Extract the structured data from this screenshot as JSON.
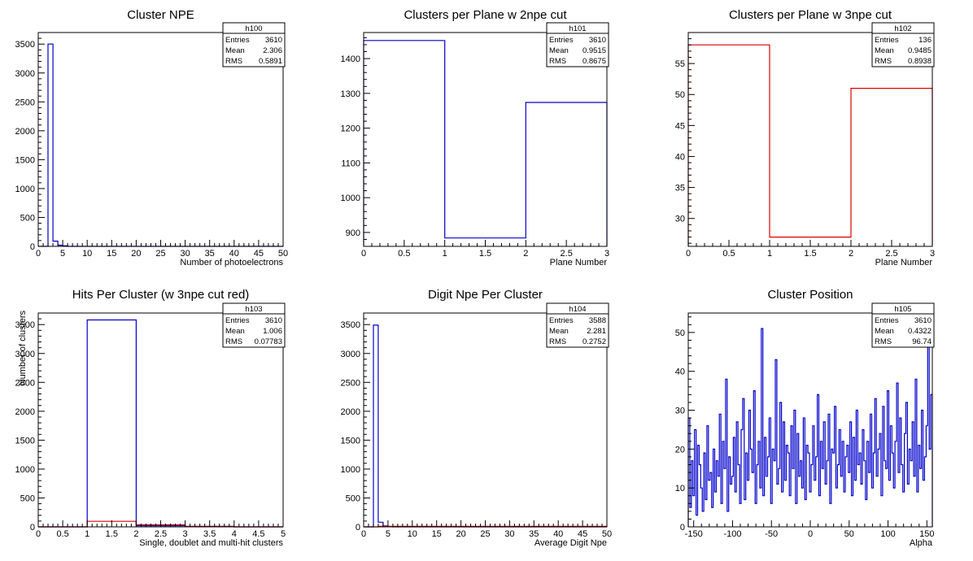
{
  "colors": {
    "blue": "#0000cc",
    "red": "#dd0000",
    "axis": "#000000"
  },
  "chart_data": [
    {
      "type": "bar",
      "title": "Cluster NPE",
      "xlabel": "Number of photoelectrons",
      "ylabel": "",
      "xlim": [
        0,
        50
      ],
      "ylim": [
        0,
        3700
      ],
      "xticks": [
        0,
        5,
        10,
        15,
        20,
        25,
        30,
        35,
        40,
        45,
        50
      ],
      "yticks": [
        0,
        500,
        1000,
        1500,
        2000,
        2500,
        3000,
        3500
      ],
      "stats": {
        "name": "h100",
        "entries": "3610",
        "mean": "2.306",
        "rms": "0.5891"
      },
      "series": [
        {
          "color": "#0000cc",
          "bin_edges": [
            0,
            2,
            3,
            4,
            5,
            6,
            50
          ],
          "values": [
            0,
            3500,
            90,
            20,
            8,
            0
          ]
        }
      ]
    },
    {
      "type": "bar",
      "title": "Clusters per Plane w 2npe cut",
      "xlabel": "Plane Number",
      "ylabel": "",
      "xlim": [
        0,
        3
      ],
      "ylim": [
        860,
        1475
      ],
      "xticks": [
        0,
        0.5,
        1,
        1.5,
        2,
        2.5,
        3
      ],
      "yticks": [
        900,
        1000,
        1100,
        1200,
        1300,
        1400
      ],
      "stats": {
        "name": "h101",
        "entries": "3610",
        "mean": "0.9515",
        "rms": "0.8675"
      },
      "series": [
        {
          "color": "#0000cc",
          "bin_edges": [
            0,
            1,
            2,
            3
          ],
          "values": [
            1452,
            884,
            1274
          ]
        }
      ]
    },
    {
      "type": "bar",
      "title": "Clusters per Plane w 3npe cut",
      "xlabel": "Plane Number",
      "ylabel": "",
      "xlim": [
        0,
        3
      ],
      "ylim": [
        25.5,
        60
      ],
      "xticks": [
        0,
        0.5,
        1,
        1.5,
        2,
        2.5,
        3
      ],
      "yticks": [
        30,
        35,
        40,
        45,
        50,
        55
      ],
      "stats": {
        "name": "h102",
        "entries": "136",
        "mean": "0.9485",
        "rms": "0.8938"
      },
      "series": [
        {
          "color": "#dd0000",
          "bin_edges": [
            0,
            1,
            2,
            3
          ],
          "values": [
            58,
            27,
            51
          ]
        }
      ]
    },
    {
      "type": "bar",
      "title": "Hits Per Cluster (w 3npe cut red)",
      "xlabel": "Single, doublet and multi-hit clusters",
      "ylabel": "Number of clusters",
      "xlim": [
        0,
        5
      ],
      "ylim": [
        0,
        3700
      ],
      "xticks": [
        0,
        0.5,
        1,
        1.5,
        2,
        2.5,
        3,
        3.5,
        4,
        4.5,
        5
      ],
      "yticks": [
        0,
        500,
        1000,
        1500,
        2000,
        2500,
        3000,
        3500
      ],
      "stats": {
        "name": "h103",
        "entries": "3610",
        "mean": "1.006",
        "rms": "0.07783"
      },
      "series": [
        {
          "color": "#0000cc",
          "bin_edges": [
            0,
            1,
            2,
            3,
            4,
            5
          ],
          "values": [
            0,
            3580,
            20,
            8,
            0
          ]
        },
        {
          "color": "#dd0000",
          "bin_edges": [
            0,
            1,
            2,
            3,
            4,
            5
          ],
          "values": [
            0,
            95,
            35,
            5,
            0
          ]
        }
      ]
    },
    {
      "type": "bar",
      "title": "Digit Npe Per Cluster",
      "xlabel": "Average Digit Npe",
      "ylabel": "",
      "xlim": [
        0,
        50
      ],
      "ylim": [
        0,
        3700
      ],
      "xticks": [
        0,
        5,
        10,
        15,
        20,
        25,
        30,
        35,
        40,
        45,
        50
      ],
      "yticks": [
        0,
        500,
        1000,
        1500,
        2000,
        2500,
        3000,
        3500
      ],
      "stats": {
        "name": "h104",
        "entries": "3588",
        "mean": "2.281",
        "rms": "0.2752"
      },
      "series": [
        {
          "color": "#0000cc",
          "bin_edges": [
            0,
            2,
            3,
            4,
            5,
            6,
            50
          ],
          "values": [
            0,
            3490,
            80,
            15,
            5,
            0
          ]
        },
        {
          "color": "#dd0000",
          "bin_edges": [
            0,
            3,
            50
          ],
          "values": [
            0,
            10
          ]
        }
      ]
    },
    {
      "type": "bar",
      "title": "Cluster Position",
      "xlabel": "Alpha",
      "ylabel": "",
      "xlim": [
        -157,
        157
      ],
      "ylim": [
        0,
        55
      ],
      "xticks": [
        -150,
        -100,
        -50,
        0,
        50,
        100,
        150
      ],
      "yticks": [
        0,
        10,
        20,
        30,
        40,
        50
      ],
      "stats": {
        "name": "h105",
        "entries": "3610",
        "mean": "0.4322",
        "rms": "96.74"
      },
      "series": [
        {
          "color": "#0000cc",
          "bin_width": 2,
          "values": [
            28,
            5,
            17,
            8,
            25,
            3,
            21,
            16,
            10,
            4,
            19,
            7,
            26,
            12,
            14,
            5,
            20,
            9,
            17,
            13,
            29,
            6,
            22,
            15,
            38,
            4,
            18,
            11,
            13,
            23,
            9,
            27,
            16,
            6,
            25,
            33,
            7,
            19,
            12,
            30,
            20,
            14,
            35,
            6,
            16,
            22,
            10,
            51,
            8,
            23,
            13,
            18,
            28,
            6,
            20,
            17,
            43,
            11,
            15,
            32,
            9,
            27,
            12,
            21,
            19,
            8,
            26,
            15,
            30,
            6,
            24,
            13,
            17,
            10,
            28,
            7,
            21,
            19,
            9,
            16,
            26,
            12,
            18,
            34,
            8,
            22,
            15,
            27,
            11,
            17,
            29,
            6,
            20,
            19,
            31,
            10,
            16,
            25,
            13,
            22,
            9,
            18,
            21,
            14,
            27,
            8,
            23,
            12,
            30,
            16,
            19,
            11,
            25,
            17,
            7,
            22,
            14,
            29,
            10,
            19,
            33,
            13,
            20,
            24,
            8,
            31,
            17,
            15,
            35,
            12,
            26,
            19,
            10,
            22,
            37,
            14,
            28,
            16,
            9,
            24,
            32,
            11,
            20,
            17,
            27,
            13,
            38,
            9,
            21,
            15,
            30,
            12,
            18,
            26,
            49,
            20,
            34,
            10
          ]
        }
      ]
    }
  ]
}
